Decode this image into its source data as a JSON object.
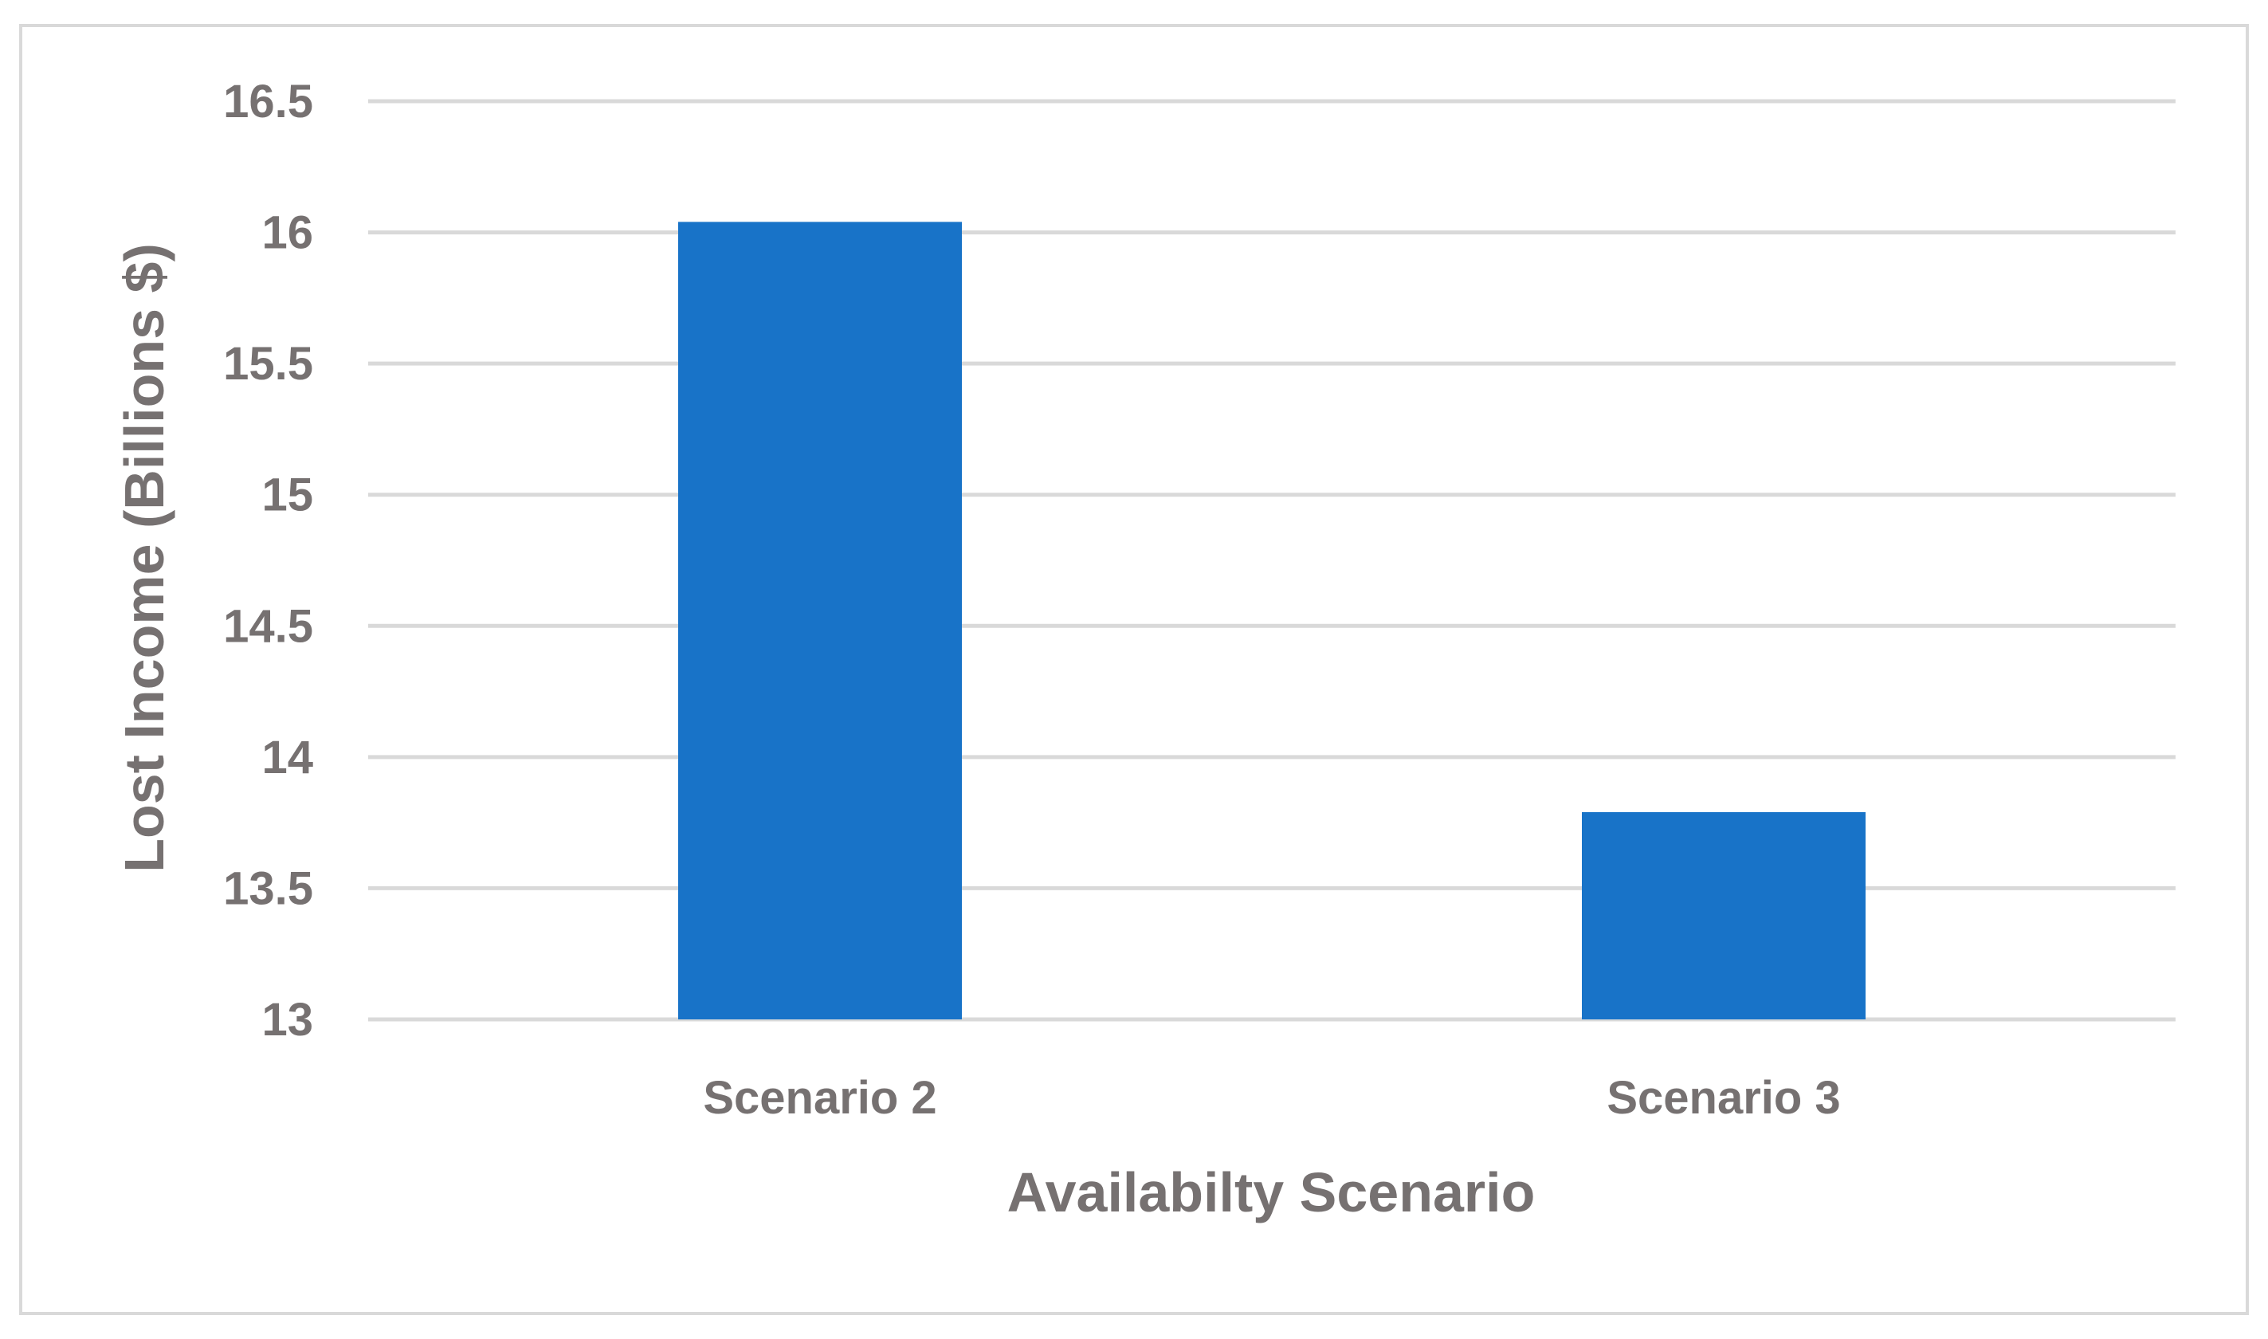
{
  "chart_data": {
    "type": "bar",
    "title": "",
    "xlabel": "Availabilty Scenario",
    "ylabel": "Lost Income (Billions $)",
    "categories": [
      "Scenario 2",
      "Scenario 3"
    ],
    "values": [
      16.04,
      13.79
    ],
    "ylim": [
      13,
      16.5
    ],
    "yticks": [
      "13",
      "13.5",
      "14",
      "14.5",
      "15",
      "15.5",
      "16",
      "16.5"
    ],
    "grid": true,
    "legend": "none",
    "bar_color": "#1873C8",
    "grid_color": "#d9d9d9",
    "text_color": "#767171"
  }
}
